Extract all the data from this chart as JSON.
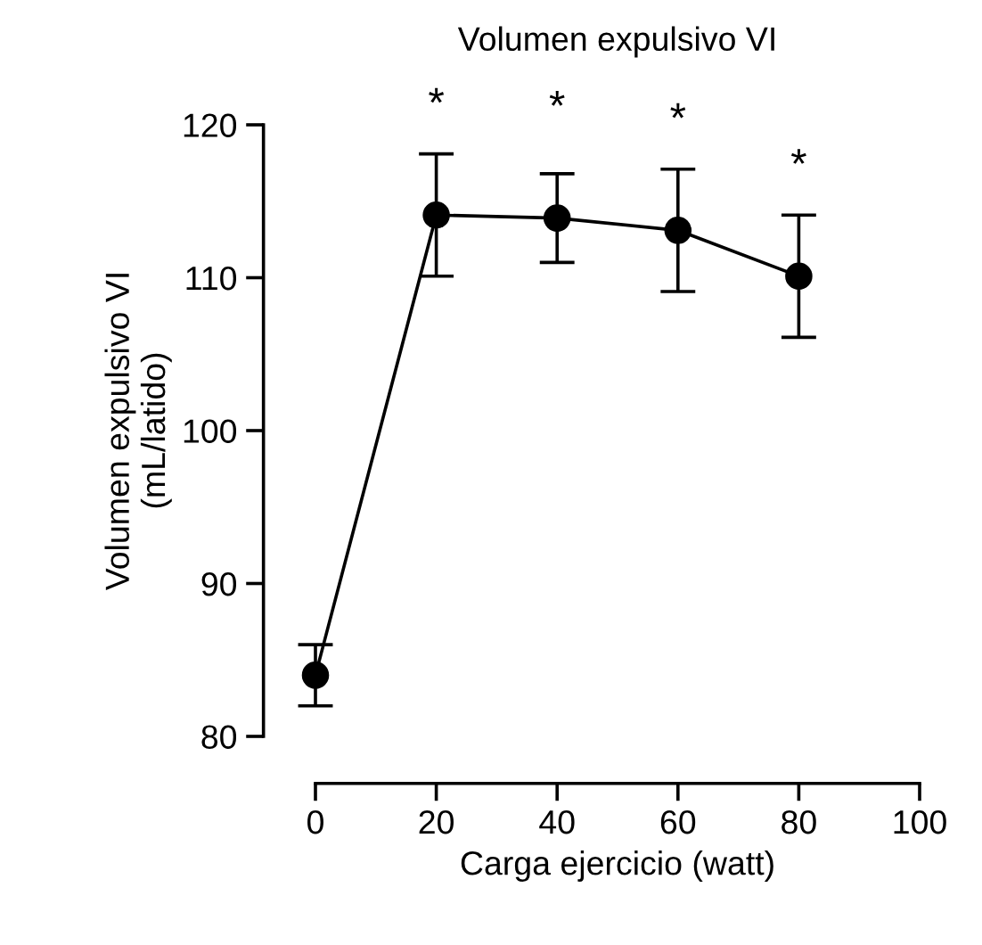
{
  "chart_data": {
    "type": "line",
    "title": "Volumen expulsivo VI",
    "xlabel": "Carga ejercicio (watt)",
    "ylabel": "Volumen expulsivo VI\n(mL/latido)",
    "x": [
      0,
      20,
      40,
      60,
      80
    ],
    "series": [
      {
        "color": "#000000",
        "values": [
          84,
          114.1,
          113.9,
          113.1,
          110.1
        ],
        "errors": [
          2,
          4,
          2.9,
          4,
          4
        ]
      }
    ],
    "xlim": [
      0,
      100
    ],
    "xticks": [
      0,
      20,
      40,
      60,
      80,
      100
    ],
    "ylim": [
      80,
      120
    ],
    "yticks": [
      80,
      90,
      100,
      110,
      120
    ],
    "marker": "circle",
    "line_style": "solid",
    "grid": false,
    "legend": false,
    "annotations": [
      {
        "text": "*",
        "x": 20,
        "y": 114.1
      },
      {
        "text": "*",
        "x": 40,
        "y": 113.9
      },
      {
        "text": "*",
        "x": 60,
        "y": 113.1
      },
      {
        "text": "*",
        "x": 80,
        "y": 110.1
      }
    ]
  }
}
